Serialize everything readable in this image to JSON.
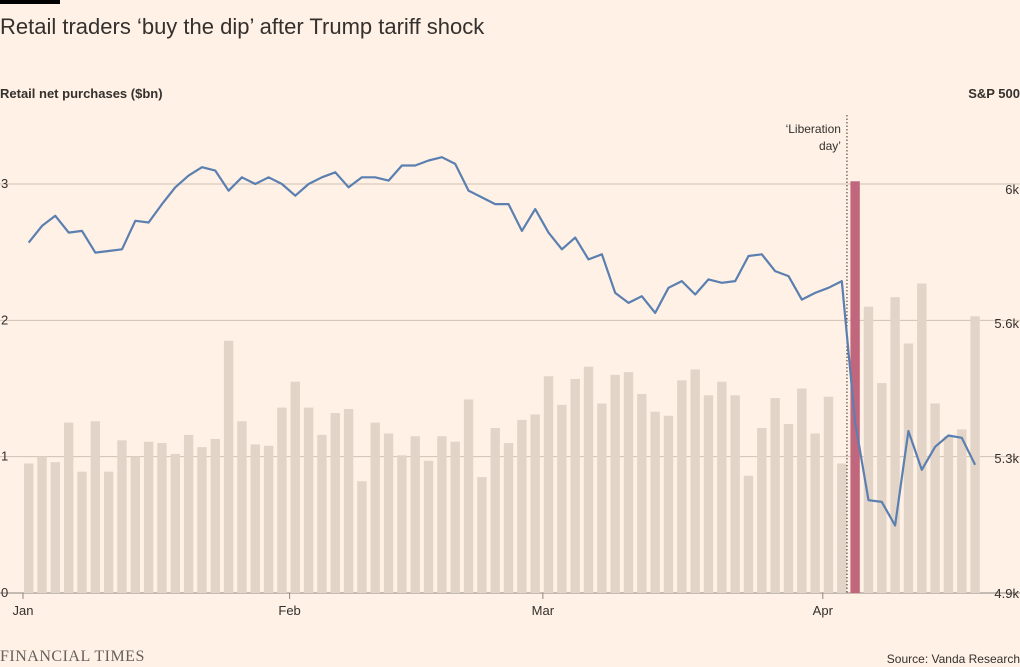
{
  "title": "Retail traders ‘buy the dip’ after Trump tariff shock",
  "logo_text": "FINANCIAL TIMES",
  "source": "Source: Vanda Research",
  "colors": {
    "background": "#fff1e5",
    "bars": "#e2d5c7",
    "highlight_bar": "#c0677d",
    "line": "#5a7fb0",
    "grid": "#cfc2b5",
    "text": "#33302e"
  },
  "chart_data": {
    "type": "bar+line",
    "ylabel_left": "Retail net purchases ($bn)",
    "ylabel_right": "S&P 500",
    "ylim_left": [
      0,
      3.3
    ],
    "ylim_right": [
      4900,
      6100
    ],
    "left_ticks": [
      "0",
      "1",
      "2",
      "3"
    ],
    "right_ticks": [
      "4.9k",
      "5.3k",
      "5.6k",
      "6k"
    ],
    "right_tick_values": [
      4900,
      5300,
      5600,
      6000
    ],
    "x_ticks": [
      {
        "label": "Jan",
        "index": 0
      },
      {
        "label": "Feb",
        "index": 20
      },
      {
        "label": "Mar",
        "index": 39
      },
      {
        "label": "Apr",
        "index": 60
      }
    ],
    "annotation": {
      "label_line1": "‘Liberation",
      "label_line2": "day’",
      "after_index": 61
    },
    "highlight_index": 62,
    "bars": [
      0.95,
      1.0,
      0.96,
      1.25,
      0.89,
      1.26,
      0.89,
      1.12,
      1.0,
      1.11,
      1.1,
      1.02,
      1.16,
      1.07,
      1.13,
      1.85,
      1.26,
      1.09,
      1.08,
      1.36,
      1.55,
      1.36,
      1.16,
      1.32,
      1.35,
      0.82,
      1.25,
      1.17,
      1.01,
      1.15,
      0.97,
      1.15,
      1.11,
      1.42,
      0.85,
      1.21,
      1.1,
      1.27,
      1.31,
      1.59,
      1.38,
      1.57,
      1.66,
      1.39,
      1.6,
      1.62,
      1.46,
      1.33,
      1.3,
      1.56,
      1.64,
      1.45,
      1.55,
      1.45,
      0.86,
      1.21,
      1.43,
      1.24,
      1.5,
      1.17,
      1.44,
      0.95,
      3.02,
      2.1,
      1.54,
      2.17,
      1.83,
      2.27,
      1.39,
      1.15,
      1.2,
      2.03
    ],
    "sp500": [
      5840,
      5890,
      5920,
      5870,
      5875,
      5810,
      5815,
      5820,
      5905,
      5900,
      5955,
      6005,
      6040,
      6065,
      6055,
      5995,
      6035,
      6015,
      6035,
      6015,
      5980,
      6015,
      6035,
      6050,
      6005,
      6035,
      6035,
      6025,
      6070,
      6070,
      6085,
      6095,
      6075,
      5995,
      5975,
      5955,
      5955,
      5875,
      5940,
      5870,
      5820,
      5855,
      5790,
      5805,
      5690,
      5660,
      5680,
      5630,
      5705,
      5725,
      5685,
      5730,
      5720,
      5725,
      5800,
      5805,
      5755,
      5740,
      5670,
      5690,
      5705,
      5725,
      5380,
      5175,
      5170,
      5100,
      5360,
      5265,
      5325,
      5350,
      5345,
      5280
    ]
  }
}
